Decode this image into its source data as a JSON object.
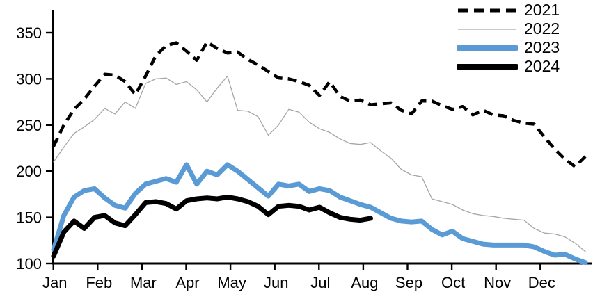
{
  "chart_data": {
    "type": "line",
    "title": "",
    "xlabel": "",
    "ylabel": "",
    "x_unit": "weekly (53 points Jan-Dec)",
    "categories": [
      "Jan",
      "Feb",
      "Mar",
      "Apr",
      "May",
      "Jun",
      "Jul",
      "Aug",
      "Sep",
      "Oct",
      "Nov",
      "Dec"
    ],
    "y_ticks": [
      100,
      150,
      200,
      250,
      300,
      350
    ],
    "ylim": [
      100,
      375
    ],
    "grid": false,
    "legend_position": "top-right",
    "axis_color": "#000000",
    "series": [
      {
        "name": "2021",
        "color": "#000000",
        "style": "dashed",
        "width": 4.5,
        "values": [
          227,
          250,
          267,
          278,
          292,
          305,
          304,
          297,
          283,
          303,
          325,
          336,
          339,
          330,
          320,
          340,
          333,
          328,
          329,
          321,
          315,
          308,
          301,
          300,
          297,
          293,
          282,
          297,
          281,
          276,
          277,
          272,
          273,
          274,
          266,
          262,
          276,
          276,
          271,
          267,
          270,
          261,
          266,
          261,
          260,
          255,
          252,
          251,
          237,
          224,
          213,
          205,
          216
        ]
      },
      {
        "name": "2022",
        "color": "#a6a6a6",
        "style": "solid",
        "width": 1.3,
        "values": [
          210,
          226,
          241,
          248,
          256,
          268,
          262,
          275,
          268,
          295,
          300,
          301,
          294,
          297,
          288,
          275,
          290,
          303,
          266,
          265,
          259,
          239,
          250,
          267,
          264,
          253,
          246,
          242,
          235,
          230,
          229,
          231,
          222,
          214,
          202,
          196,
          194,
          170,
          167,
          164,
          158,
          154,
          152,
          151,
          149,
          148,
          147,
          138,
          133,
          132,
          129,
          122,
          113
        ]
      },
      {
        "name": "2023",
        "color": "#5b9bd5",
        "style": "solid",
        "width": 7,
        "values": [
          115,
          152,
          172,
          179,
          181,
          171,
          163,
          160,
          176,
          186,
          189,
          192,
          188,
          207,
          186,
          200,
          196,
          207,
          200,
          191,
          182,
          173,
          186,
          184,
          186,
          178,
          181,
          179,
          172,
          168,
          164,
          161,
          155,
          149,
          146,
          145,
          146,
          137,
          131,
          135,
          127,
          124,
          121,
          120,
          120,
          120,
          120,
          118,
          113,
          109,
          110,
          105,
          101
        ]
      },
      {
        "name": "2024",
        "color": "#000000",
        "style": "solid",
        "width": 7,
        "values": [
          108,
          134,
          146,
          138,
          150,
          152,
          144,
          141,
          153,
          166,
          167,
          165,
          159,
          168,
          170,
          171,
          170,
          172,
          170,
          167,
          162,
          153,
          162,
          163,
          162,
          158,
          161,
          155,
          150,
          148,
          147,
          149
        ]
      }
    ]
  }
}
